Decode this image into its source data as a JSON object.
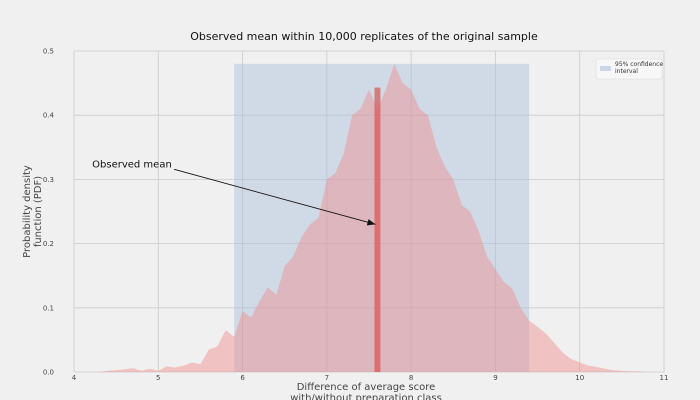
{
  "chart_data": {
    "type": "area",
    "title": "Observed mean within 10,000 replicates of the original sample",
    "xlabel_lines": [
      "Difference of average score",
      "with/without preparation class"
    ],
    "ylabel_lines": [
      "Probability density",
      "function (PDF)"
    ],
    "xlim": [
      4,
      11
    ],
    "ylim": [
      0,
      0.5
    ],
    "x_ticks": [
      "4",
      "5",
      "6",
      "7",
      "8",
      "9",
      "10",
      "11"
    ],
    "y_ticks": [
      "0.0",
      "0.1",
      "0.2",
      "0.3",
      "0.4",
      "0.5"
    ],
    "grid": true,
    "legend_placement": "top-right",
    "legend_label_lines": [
      "95% confidence",
      "interval"
    ],
    "confidence_interval": {
      "low": 5.9,
      "high": 9.4,
      "height": 0.48
    },
    "observed_mean": {
      "x": 7.6,
      "density": 0.443,
      "bar_width": 0.07
    },
    "annotation": {
      "text": "Observed mean",
      "text_x": 4.5,
      "text_y": 0.325,
      "arrow_x": 7.6,
      "arrow_y": 0.23
    },
    "series": [
      {
        "x": [
          4.2,
          4.3,
          4.4,
          4.5,
          4.6,
          4.7,
          4.8,
          4.9,
          5.0,
          5.1,
          5.2,
          5.3,
          5.4,
          5.5,
          5.6,
          5.7,
          5.8,
          5.9,
          6.0,
          6.1,
          6.2,
          6.3,
          6.4,
          6.5,
          6.6,
          6.7,
          6.8,
          6.9,
          7.0,
          7.1,
          7.2,
          7.3,
          7.4,
          7.5,
          7.6,
          7.7,
          7.8,
          7.9,
          8.0,
          8.1,
          8.2,
          8.3,
          8.4,
          8.5,
          8.6,
          8.7,
          8.8,
          8.9,
          9.0,
          9.1,
          9.2,
          9.3,
          9.4,
          9.5,
          9.6,
          9.7,
          9.8,
          9.9,
          10.0,
          10.1,
          10.2,
          10.3,
          10.4,
          10.5,
          10.6,
          10.7,
          10.8,
          10.9
        ],
        "y": [
          0.0,
          0.0,
          0.002,
          0.003,
          0.004,
          0.006,
          0.002,
          0.005,
          0.002,
          0.009,
          0.007,
          0.01,
          0.015,
          0.012,
          0.035,
          0.04,
          0.065,
          0.055,
          0.095,
          0.085,
          0.11,
          0.132,
          0.12,
          0.165,
          0.18,
          0.21,
          0.23,
          0.24,
          0.3,
          0.31,
          0.34,
          0.4,
          0.41,
          0.44,
          0.41,
          0.44,
          0.48,
          0.45,
          0.44,
          0.41,
          0.4,
          0.35,
          0.32,
          0.3,
          0.26,
          0.25,
          0.22,
          0.18,
          0.16,
          0.14,
          0.13,
          0.1,
          0.08,
          0.07,
          0.06,
          0.045,
          0.03,
          0.02,
          0.015,
          0.01,
          0.008,
          0.005,
          0.003,
          0.002,
          0.001,
          0.001,
          0.0,
          0.0
        ]
      }
    ]
  }
}
